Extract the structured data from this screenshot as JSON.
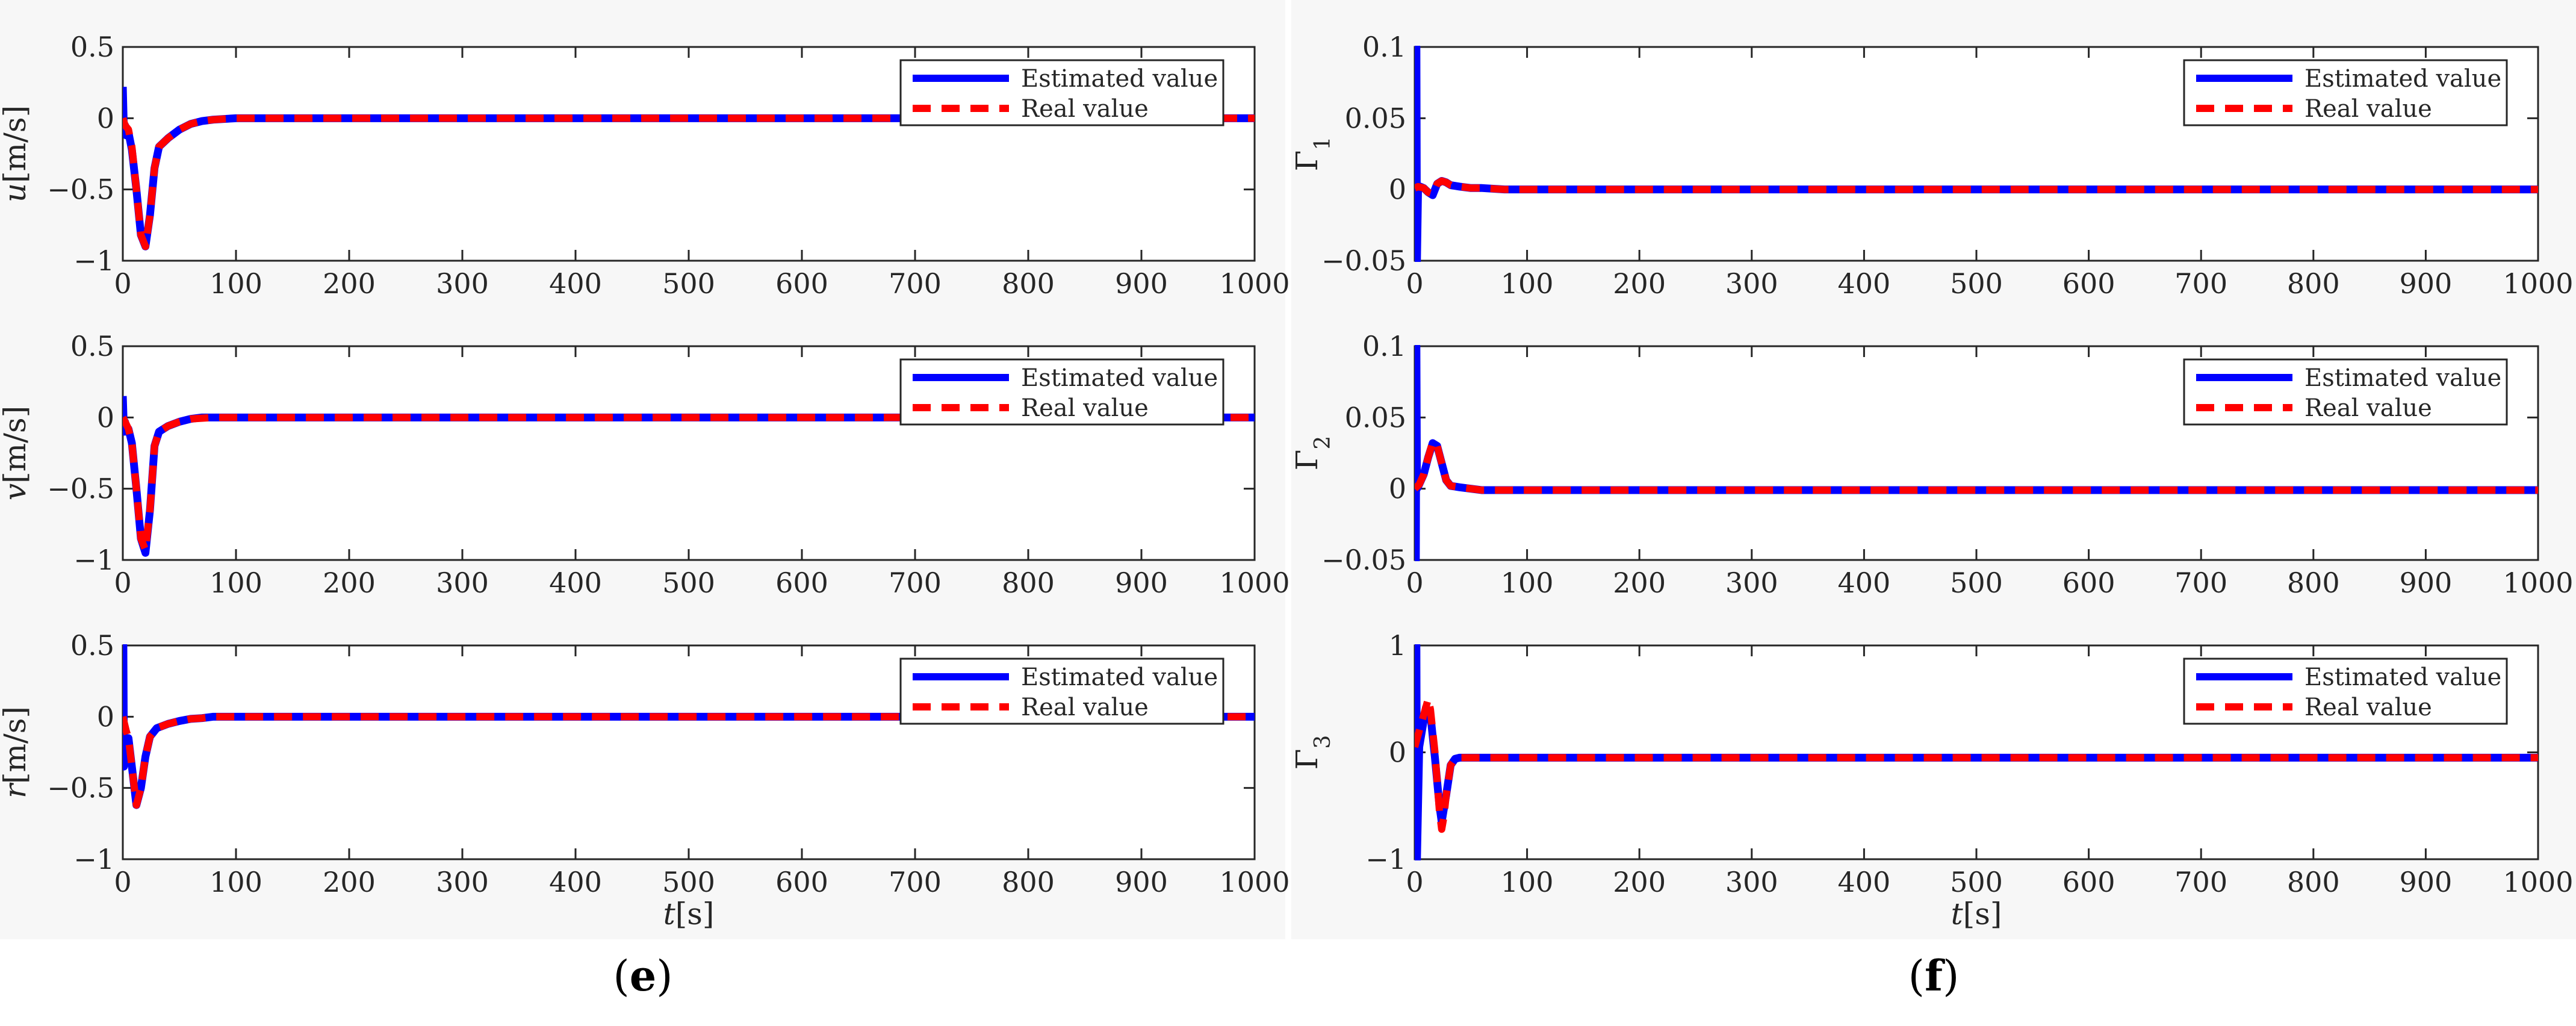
{
  "figure": {
    "captions": [
      {
        "open": "(",
        "letter": "e",
        "close": ")"
      },
      {
        "open": "(",
        "letter": "f",
        "close": ")"
      }
    ],
    "colors": {
      "estimated": "#0000ff",
      "real": "#ff0000",
      "axes": "#262626",
      "panel_background": "#f7f7f7"
    }
  },
  "chart_data": [
    {
      "type": "line",
      "ylabel": {
        "italic": "u",
        "plain": "[m/s]"
      },
      "xlabel": null,
      "xlim": [
        0,
        1000
      ],
      "ylim": [
        -1,
        0.5
      ],
      "xticks": [
        0,
        100,
        200,
        300,
        400,
        500,
        600,
        700,
        800,
        900,
        1000
      ],
      "yticks": [
        -1,
        -0.5,
        0,
        0.5
      ],
      "ytick_labels": [
        "−1",
        "−0.5",
        "0",
        "0.5"
      ],
      "legend": {
        "placement": "top-right",
        "entries": [
          "Estimated value",
          "Real value"
        ]
      },
      "series": [
        {
          "name": "Estimated value",
          "style": "solid",
          "color": "#0000ff",
          "x": [
            0,
            1,
            2,
            3,
            5,
            8,
            12,
            16,
            20,
            24,
            28,
            32,
            40,
            50,
            60,
            70,
            80,
            100,
            150,
            200,
            400,
            600,
            800,
            1000
          ],
          "y": [
            0.22,
            -0.1,
            -0.05,
            -0.12,
            -0.1,
            -0.22,
            -0.5,
            -0.82,
            -0.9,
            -0.68,
            -0.35,
            -0.2,
            -0.14,
            -0.08,
            -0.04,
            -0.02,
            -0.01,
            0,
            0,
            0,
            0,
            0,
            0,
            0
          ]
        },
        {
          "name": "Real value",
          "style": "dashed",
          "color": "#ff0000",
          "x": [
            0,
            2,
            5,
            8,
            12,
            16,
            20,
            24,
            28,
            32,
            40,
            50,
            60,
            70,
            80,
            100,
            150,
            200,
            400,
            600,
            800,
            1000
          ],
          "y": [
            0,
            -0.05,
            -0.08,
            -0.2,
            -0.5,
            -0.82,
            -0.9,
            -0.68,
            -0.35,
            -0.2,
            -0.14,
            -0.08,
            -0.04,
            -0.02,
            -0.01,
            0,
            0,
            0,
            0,
            0,
            0,
            0
          ]
        }
      ]
    },
    {
      "type": "line",
      "ylabel": {
        "italic": "v",
        "plain": "[m/s]"
      },
      "xlabel": null,
      "xlim": [
        0,
        1000
      ],
      "ylim": [
        -1,
        0.5
      ],
      "xticks": [
        0,
        100,
        200,
        300,
        400,
        500,
        600,
        700,
        800,
        900,
        1000
      ],
      "yticks": [
        -1,
        -0.5,
        0,
        0.5
      ],
      "ytick_labels": [
        "−1",
        "−0.5",
        "0",
        "0.5"
      ],
      "legend": {
        "placement": "top-right",
        "entries": [
          "Estimated value",
          "Real value"
        ]
      },
      "series": [
        {
          "name": "Estimated value",
          "style": "solid",
          "color": "#0000ff",
          "x": [
            0,
            1,
            2,
            3,
            5,
            8,
            12,
            16,
            20,
            24,
            28,
            32,
            40,
            50,
            60,
            70,
            80,
            100,
            150,
            200,
            400,
            600,
            800,
            1000
          ],
          "y": [
            0.15,
            -0.1,
            -0.03,
            -0.1,
            -0.08,
            -0.18,
            -0.5,
            -0.85,
            -0.95,
            -0.65,
            -0.2,
            -0.1,
            -0.06,
            -0.03,
            -0.01,
            0,
            0,
            0,
            0,
            0,
            0,
            0,
            0,
            0
          ]
        },
        {
          "name": "Real value",
          "style": "dashed",
          "color": "#ff0000",
          "x": [
            0,
            2,
            5,
            8,
            12,
            16,
            20,
            24,
            28,
            32,
            40,
            50,
            60,
            80,
            100,
            150,
            200,
            400,
            600,
            800,
            1000
          ],
          "y": [
            0,
            -0.03,
            -0.08,
            -0.18,
            -0.5,
            -0.85,
            -0.93,
            -0.65,
            -0.2,
            -0.1,
            -0.06,
            -0.03,
            -0.01,
            0,
            0,
            0,
            0,
            0,
            0,
            0,
            0
          ]
        }
      ]
    },
    {
      "type": "line",
      "ylabel": {
        "italic": "r",
        "plain": "[m/s]"
      },
      "xlabel": {
        "italic": "t",
        "plain": "[s]"
      },
      "xlim": [
        0,
        1000
      ],
      "ylim": [
        -1,
        0.5
      ],
      "xticks": [
        0,
        100,
        200,
        300,
        400,
        500,
        600,
        700,
        800,
        900,
        1000
      ],
      "yticks": [
        -1,
        -0.5,
        0,
        0.5
      ],
      "ytick_labels": [
        "−1",
        "−0.5",
        "0",
        "0.5"
      ],
      "legend": {
        "placement": "top-right",
        "entries": [
          "Estimated value",
          "Real value"
        ]
      },
      "series": [
        {
          "name": "Estimated value",
          "style": "solid",
          "color": "#0000ff",
          "x": [
            0,
            0.5,
            1,
            2,
            3,
            5,
            8,
            12,
            16,
            20,
            24,
            30,
            40,
            50,
            60,
            70,
            80,
            100,
            150,
            200,
            400,
            600,
            800,
            1000
          ],
          "y": [
            0.5,
            0.5,
            -0.35,
            -0.25,
            -0.3,
            -0.15,
            -0.35,
            -0.62,
            -0.5,
            -0.28,
            -0.14,
            -0.08,
            -0.05,
            -0.03,
            -0.015,
            -0.01,
            0,
            0,
            0,
            0,
            0,
            0,
            0,
            0
          ]
        },
        {
          "name": "Real value",
          "style": "dashed",
          "color": "#ff0000",
          "x": [
            0,
            3,
            5,
            8,
            12,
            16,
            20,
            24,
            30,
            40,
            50,
            60,
            70,
            80,
            100,
            150,
            200,
            400,
            600,
            800,
            1000
          ],
          "y": [
            0,
            -0.1,
            -0.15,
            -0.35,
            -0.62,
            -0.5,
            -0.28,
            -0.14,
            -0.08,
            -0.05,
            -0.03,
            -0.015,
            -0.01,
            0,
            0,
            0,
            0,
            0,
            0,
            0,
            0
          ]
        }
      ]
    },
    {
      "type": "line",
      "ylabel": {
        "italic": "",
        "plain": "Γ",
        "sub": "1"
      },
      "xlabel": null,
      "xlim": [
        0,
        1000
      ],
      "ylim": [
        -0.05,
        0.1
      ],
      "xticks": [
        0,
        100,
        200,
        300,
        400,
        500,
        600,
        700,
        800,
        900,
        1000
      ],
      "yticks": [
        -0.05,
        0,
        0.05,
        0.1
      ],
      "ytick_labels": [
        "−0.05",
        "0",
        "0.05",
        "0.1"
      ],
      "legend": {
        "placement": "top-right",
        "entries": [
          "Estimated value",
          "Real value"
        ]
      },
      "series": [
        {
          "name": "Estimated value",
          "style": "solid",
          "color": "#0000ff",
          "x": [
            0,
            0.5,
            1,
            1.5,
            2,
            3,
            5,
            8,
            12,
            16,
            20,
            24,
            28,
            32,
            40,
            50,
            60,
            80,
            100,
            200,
            400,
            600,
            800,
            1000
          ],
          "y": [
            0,
            0.1,
            -0.05,
            0.1,
            -0.05,
            0.002,
            0.002,
            0.001,
            -0.002,
            -0.004,
            0.004,
            0.006,
            0.005,
            0.003,
            0.002,
            0.001,
            0.001,
            0,
            0,
            0,
            0,
            0,
            0,
            0
          ]
        },
        {
          "name": "Real value",
          "style": "dashed",
          "color": "#ff0000",
          "x": [
            0,
            3,
            8,
            12,
            16,
            20,
            24,
            28,
            32,
            40,
            50,
            60,
            80,
            100,
            200,
            400,
            600,
            800,
            1000
          ],
          "y": [
            0.001,
            0.002,
            0.001,
            -0.002,
            -0.003,
            0.004,
            0.006,
            0.005,
            0.003,
            0.002,
            0.001,
            0.001,
            0,
            0,
            0,
            0,
            0,
            0,
            0
          ]
        }
      ]
    },
    {
      "type": "line",
      "ylabel": {
        "italic": "",
        "plain": "Γ",
        "sub": "2"
      },
      "xlabel": null,
      "xlim": [
        0,
        1000
      ],
      "ylim": [
        -0.05,
        0.1
      ],
      "xticks": [
        0,
        100,
        200,
        300,
        400,
        500,
        600,
        700,
        800,
        900,
        1000
      ],
      "yticks": [
        -0.05,
        0,
        0.05,
        0.1
      ],
      "ytick_labels": [
        "−0.05",
        "0",
        "0.05",
        "0.1"
      ],
      "legend": {
        "placement": "top-right",
        "entries": [
          "Estimated value",
          "Real value"
        ]
      },
      "series": [
        {
          "name": "Estimated value",
          "style": "solid",
          "color": "#0000ff",
          "x": [
            0,
            0.5,
            1,
            1.5,
            2,
            4,
            8,
            12,
            16,
            20,
            24,
            28,
            32,
            40,
            50,
            60,
            100,
            200,
            400,
            600,
            800,
            1000
          ],
          "y": [
            0,
            0.1,
            -0.05,
            0.1,
            0,
            0.003,
            0.01,
            0.022,
            0.032,
            0.03,
            0.018,
            0.006,
            0.002,
            0.001,
            0,
            -0.001,
            -0.001,
            -0.001,
            -0.001,
            -0.001,
            -0.001,
            -0.001
          ]
        },
        {
          "name": "Real value",
          "style": "dashed",
          "color": "#ff0000",
          "x": [
            0,
            4,
            8,
            12,
            16,
            20,
            24,
            28,
            32,
            40,
            50,
            60,
            100,
            200,
            400,
            600,
            800,
            1000
          ],
          "y": [
            0,
            0.003,
            0.01,
            0.022,
            0.033,
            0.03,
            0.018,
            0.006,
            0.002,
            0.001,
            0,
            -0.001,
            -0.001,
            -0.001,
            -0.001,
            -0.001,
            -0.001,
            -0.001
          ]
        }
      ]
    },
    {
      "type": "line",
      "ylabel": {
        "italic": "",
        "plain": "Γ",
        "sub": "3"
      },
      "xlabel": {
        "italic": "t",
        "plain": "[s]"
      },
      "xlim": [
        0,
        1000
      ],
      "ylim": [
        -1,
        1
      ],
      "xticks": [
        0,
        100,
        200,
        300,
        400,
        500,
        600,
        700,
        800,
        900,
        1000
      ],
      "yticks": [
        -1,
        0,
        1
      ],
      "ytick_labels": [
        "−1",
        "0",
        "1"
      ],
      "legend": {
        "placement": "top-right",
        "entries": [
          "Estimated value",
          "Real value"
        ]
      },
      "series": [
        {
          "name": "Estimated value",
          "style": "solid",
          "color": "#0000ff",
          "x": [
            0,
            0.5,
            1,
            1.5,
            2,
            4,
            8,
            10,
            14,
            18,
            22,
            24,
            28,
            32,
            36,
            40,
            50,
            60,
            100,
            200,
            400,
            600,
            800,
            1000
          ],
          "y": [
            0,
            1,
            -1,
            1,
            -1,
            0.05,
            0.3,
            0.42,
            0.35,
            -0.05,
            -0.5,
            -0.65,
            -0.4,
            -0.12,
            -0.06,
            -0.05,
            -0.05,
            -0.05,
            -0.05,
            -0.05,
            -0.05,
            -0.05,
            -0.05,
            -0.05
          ]
        },
        {
          "name": "Real value",
          "style": "dashed",
          "color": "#ff0000",
          "x": [
            0,
            4,
            8,
            12,
            14,
            18,
            22,
            24,
            26,
            28,
            32,
            36,
            40,
            50,
            100,
            200,
            400,
            600,
            800,
            1000
          ],
          "y": [
            0.05,
            0.2,
            0.35,
            0.5,
            0.4,
            0,
            -0.55,
            -0.72,
            -0.6,
            -0.4,
            -0.12,
            -0.06,
            -0.05,
            -0.05,
            -0.05,
            -0.05,
            -0.05,
            -0.05,
            -0.05,
            -0.05
          ]
        }
      ]
    }
  ]
}
